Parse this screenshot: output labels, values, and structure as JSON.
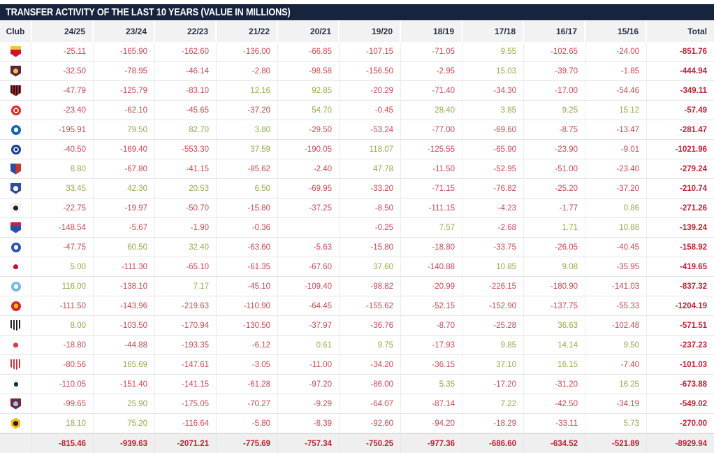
{
  "title": "TRANSFER ACTIVITY OF THE LAST 10 YEARS (VALUE IN MILLIONS)",
  "colors": {
    "navy": "#16243e",
    "header_text": "#233047",
    "neg": "#c64a52",
    "pos": "#8fad4a",
    "total_red": "#bc2233",
    "header_bg": "#f2f2f2",
    "footer_bg": "#efefef"
  },
  "table": {
    "columns": [
      "Club",
      "24/25",
      "23/24",
      "22/23",
      "21/22",
      "20/21",
      "19/20",
      "18/19",
      "17/18",
      "16/17",
      "15/16",
      "Total"
    ],
    "rows": [
      {
        "club": "arsenal",
        "icon": {
          "name": "arsenal-crest-icon",
          "shape": "shield",
          "pattern": "band",
          "c1": "#d5122c",
          "c2": "#f6c141"
        },
        "values": [
          "-25.11",
          "-165.90",
          "-162.60",
          "-136.00",
          "-66.85",
          "-107.15",
          "-71.05",
          "9.55",
          "-102.65",
          "-24.00"
        ],
        "total": "-851.76"
      },
      {
        "club": "aston-villa",
        "icon": {
          "name": "aston-villa-crest-icon",
          "shape": "shield",
          "pattern": "dot",
          "c1": "#5c2340",
          "c2": "#e8c24a"
        },
        "values": [
          "-32.50",
          "-78.95",
          "-46.14",
          "-2.80",
          "-98.58",
          "-156.50",
          "-2.95",
          "15.03",
          "-39.70",
          "-1.85"
        ],
        "total": "-444.94"
      },
      {
        "club": "bournemouth",
        "icon": {
          "name": "bournemouth-crest-icon",
          "shape": "shield",
          "pattern": "stripes",
          "c1": "#1c1c1c",
          "c2": "#b52025"
        },
        "values": [
          "-47.79",
          "-125.79",
          "-83.10",
          "12.16",
          "92.85",
          "-20.29",
          "-71.40",
          "-34.30",
          "-17.00",
          "-54.46"
        ],
        "total": "-349.11"
      },
      {
        "club": "brentford",
        "icon": {
          "name": "brentford-crest-icon",
          "shape": "circle",
          "pattern": "ring",
          "c1": "#e2252b",
          "c2": "#ffffff"
        },
        "values": [
          "-23.40",
          "-62.10",
          "-45.65",
          "-37.20",
          "54.70",
          "-0.45",
          "28.40",
          "3.85",
          "9.25",
          "15.12"
        ],
        "total": "-57.49"
      },
      {
        "club": "brighton",
        "icon": {
          "name": "brighton-crest-icon",
          "shape": "circle",
          "pattern": "dot",
          "c1": "#1467b3",
          "c2": "#ffffff"
        },
        "values": [
          "-195.91",
          "79.50",
          "82.70",
          "3.80",
          "-29.50",
          "-53.24",
          "-77.00",
          "-69.60",
          "-8.75",
          "-13.47"
        ],
        "total": "-281.47"
      },
      {
        "club": "chelsea",
        "icon": {
          "name": "chelsea-crest-icon",
          "shape": "circle",
          "pattern": "ring",
          "c1": "#1b3d8f",
          "c2": "#ffffff"
        },
        "values": [
          "-40.50",
          "-169.40",
          "-553.30",
          "37.59",
          "-190.05",
          "118.07",
          "-125.55",
          "-65.90",
          "-23.90",
          "-9.01"
        ],
        "total": "-1021.96"
      },
      {
        "club": "crystal-palace",
        "icon": {
          "name": "crystal-palace-crest-icon",
          "shape": "shield",
          "pattern": "split",
          "c1": "#2b4d9b",
          "c2": "#c0392b"
        },
        "values": [
          "8.80",
          "-67.80",
          "-41.15",
          "-85.62",
          "-2.40",
          "47.78",
          "-11.50",
          "-52.95",
          "-51.00",
          "-23.40"
        ],
        "total": "-279.24"
      },
      {
        "club": "everton",
        "icon": {
          "name": "everton-crest-icon",
          "shape": "shield",
          "pattern": "dot",
          "c1": "#2d4e9e",
          "c2": "#ffffff"
        },
        "values": [
          "33.45",
          "42.30",
          "20.53",
          "6.50",
          "-69.95",
          "-33.20",
          "-71.15",
          "-76.82",
          "-25.20",
          "-37.20"
        ],
        "total": "-210.74"
      },
      {
        "club": "fulham",
        "icon": {
          "name": "fulham-crest-icon",
          "shape": "shield",
          "pattern": "dot",
          "c1": "#f2f2f2",
          "c2": "#222222"
        },
        "values": [
          "-22.75",
          "-19.97",
          "-50.70",
          "-15.80",
          "-37.25",
          "-8.50",
          "-111.15",
          "-4.23",
          "-1.77",
          "0.86"
        ],
        "total": "-271.26"
      },
      {
        "club": "ipswich",
        "icon": {
          "name": "ipswich-crest-icon",
          "shape": "shield",
          "pattern": "band",
          "c1": "#2b4eae",
          "c2": "#c0253a"
        },
        "values": [
          "-148.54",
          "-5.67",
          "-1.90",
          "-0.36",
          "",
          "-0.25",
          "7.57",
          "-2.68",
          "1.71",
          "10.88"
        ],
        "total": "-139.24"
      },
      {
        "club": "leicester",
        "icon": {
          "name": "leicester-crest-icon",
          "shape": "circle",
          "pattern": "dot",
          "c1": "#2b55b4",
          "c2": "#ffffff"
        },
        "values": [
          "-47.75",
          "60.50",
          "32.40",
          "-63.60",
          "-5.63",
          "-15.80",
          "-18.80",
          "-33.75",
          "-26.05",
          "-40.45"
        ],
        "total": "-158.92"
      },
      {
        "club": "liverpool",
        "icon": {
          "name": "liverpool-crest-icon",
          "shape": "shield",
          "pattern": "dot",
          "c1": "#ffffff",
          "c2": "#c8102e"
        },
        "values": [
          "5.00",
          "-111.30",
          "-65.10",
          "-61.35",
          "-67.60",
          "37.60",
          "-140.88",
          "10.85",
          "9.08",
          "-35.95"
        ],
        "total": "-419.65"
      },
      {
        "club": "man-city",
        "icon": {
          "name": "man-city-crest-icon",
          "shape": "circle",
          "pattern": "dot",
          "c1": "#79b6e3",
          "c2": "#ffffff"
        },
        "values": [
          "116.00",
          "-138.10",
          "7.17",
          "-45.10",
          "-109.40",
          "-98.82",
          "-20.99",
          "-226.15",
          "-180.90",
          "-141.03"
        ],
        "total": "-837.32"
      },
      {
        "club": "man-united",
        "icon": {
          "name": "man-united-crest-icon",
          "shape": "circle",
          "pattern": "dot",
          "c1": "#d8242c",
          "c2": "#f3c117"
        },
        "values": [
          "-111.50",
          "-143.96",
          "-219.63",
          "-110.90",
          "-64.45",
          "-155.62",
          "-52.15",
          "-152.90",
          "-137.75",
          "-55.33"
        ],
        "total": "-1204.19"
      },
      {
        "club": "newcastle",
        "icon": {
          "name": "newcastle-crest-icon",
          "shape": "shield",
          "pattern": "stripes",
          "c1": "#222222",
          "c2": "#ffffff"
        },
        "values": [
          "8.00",
          "-103.50",
          "-170.94",
          "-130.50",
          "-37.97",
          "-36.76",
          "-8.70",
          "-25.28",
          "36.63",
          "-102.48"
        ],
        "total": "-571.51"
      },
      {
        "club": "nottingham-forest",
        "icon": {
          "name": "nottingham-forest-crest-icon",
          "shape": "shield",
          "pattern": "dot",
          "c1": "#ffffff",
          "c2": "#d93a45"
        },
        "values": [
          "-18.80",
          "-44.88",
          "-193.35",
          "-6.12",
          "0.61",
          "9.75",
          "-17.93",
          "9.85",
          "14.14",
          "9.50"
        ],
        "total": "-237.23"
      },
      {
        "club": "southampton",
        "icon": {
          "name": "southampton-crest-icon",
          "shape": "shield",
          "pattern": "stripes",
          "c1": "#d0313f",
          "c2": "#ffffff"
        },
        "values": [
          "-80.56",
          "165.69",
          "-147.61",
          "-3.05",
          "-11.00",
          "-34.20",
          "-36.15",
          "37.10",
          "16.15",
          "-7.40"
        ],
        "total": "-101.03"
      },
      {
        "club": "tottenham",
        "icon": {
          "name": "tottenham-crest-icon",
          "shape": "circle",
          "pattern": "dot",
          "c1": "#ffffff",
          "c2": "#1a2a5a"
        },
        "values": [
          "-110.05",
          "-151.40",
          "-141.15",
          "-61.28",
          "-97.20",
          "-86.00",
          "5.35",
          "-17.20",
          "-31.20",
          "16.25"
        ],
        "total": "-673.88"
      },
      {
        "club": "west-ham",
        "icon": {
          "name": "west-ham-crest-icon",
          "shape": "shield",
          "pattern": "dot",
          "c1": "#76263c",
          "c2": "#85d2f0"
        },
        "values": [
          "-99.65",
          "25.90",
          "-175.05",
          "-70.27",
          "-9.29",
          "-64.07",
          "-87.14",
          "7.22",
          "-42.50",
          "-34.19"
        ],
        "total": "-549.02"
      },
      {
        "club": "wolves",
        "icon": {
          "name": "wolves-crest-icon",
          "shape": "hex",
          "pattern": "dot",
          "c1": "#f9b514",
          "c2": "#231f20"
        },
        "values": [
          "18.10",
          "75.20",
          "-116.64",
          "-5.80",
          "-8.39",
          "-92.60",
          "-94.20",
          "-18.29",
          "-33.11",
          "5.73"
        ],
        "total": "-270.00"
      }
    ],
    "footer": {
      "values": [
        "-815.46",
        "-939.63",
        "-2071.21",
        "-775.69",
        "-757.34",
        "-750.25",
        "-977.36",
        "-686.60",
        "-634.52",
        "-521.89"
      ],
      "total": "-8929.94"
    }
  }
}
